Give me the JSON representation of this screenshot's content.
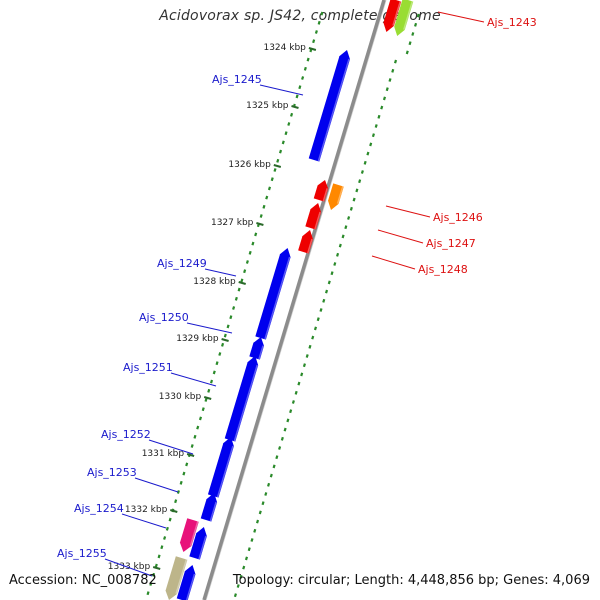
{
  "title": "Acidovorax sp. JS42, complete genome",
  "footer": {
    "accession": "Accession: NC_008782",
    "summary": "Topology: circular; Length: 4,448,856 bp; Genes: 4,069"
  },
  "ruler_ticks": [
    "1324 kbp",
    "1325 kbp",
    "1326 kbp",
    "1327 kbp",
    "1328 kbp",
    "1329 kbp",
    "1330 kbp",
    "1331 kbp",
    "1332 kbp",
    "1333 kbp"
  ],
  "colors": {
    "backbone": "#8c8c8c",
    "left_dots": "#2a8a2a",
    "right_dots": "#2a8a2a",
    "left_label": "#1a1acc",
    "right_label": "#dd1111",
    "blue": "#0000ee",
    "red": "#ee0000",
    "orange": "#ff8800",
    "magenta": "#e8127a",
    "tan": "#bdb58a",
    "lime": "#99dd33"
  },
  "left_labels": [
    "Ajs_1245",
    "Ajs_1249",
    "Ajs_1250",
    "Ajs_1251",
    "Ajs_1252",
    "Ajs_1253",
    "Ajs_1254",
    "Ajs_1255"
  ],
  "right_labels": [
    "Ajs_1243",
    "Ajs_1246",
    "Ajs_1247",
    "Ajs_1248"
  ]
}
